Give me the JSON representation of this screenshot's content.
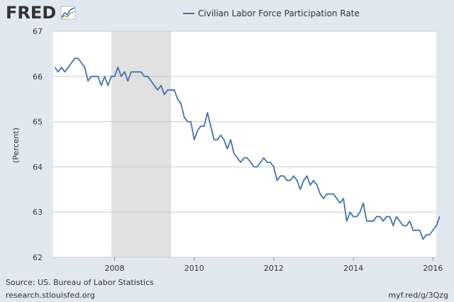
{
  "branding": {
    "logo_text": "FRED",
    "source": "Source: US. Bureau of Labor Statistics",
    "site": "research.stlouisfed.org",
    "short_url": "myf.red/g/3Qzg"
  },
  "colors": {
    "background": "#e1e9f0",
    "plot_background": "#ffffff",
    "series": "#4572a7",
    "recession": "#e1e1e1",
    "grid": "#cccccc"
  },
  "chart_data": {
    "type": "line",
    "title": "",
    "xlabel": "",
    "ylabel": "(Percent)",
    "xlim": [
      2006.458,
      2016.083
    ],
    "ylim": [
      62,
      67
    ],
    "grid": true,
    "legend": "top",
    "x_ticks": [
      2008,
      2010,
      2012,
      2014,
      2016
    ],
    "y_ticks": [
      62,
      63,
      64,
      65,
      66,
      67
    ],
    "recession": [
      2007.917,
      2009.417
    ],
    "series": [
      {
        "name": "Civilian Labor Force Participation Rate",
        "color": "#4572a7",
        "x_start": 2006.5,
        "x_step": 0.083333,
        "values": [
          66.2,
          66.1,
          66.2,
          66.1,
          66.2,
          66.3,
          66.4,
          66.4,
          66.3,
          66.2,
          65.9,
          66.0,
          66.0,
          66.0,
          65.8,
          66.0,
          65.8,
          66.0,
          66.0,
          66.2,
          66.0,
          66.1,
          65.9,
          66.1,
          66.1,
          66.1,
          66.1,
          66.0,
          66.0,
          65.9,
          65.8,
          65.7,
          65.8,
          65.6,
          65.7,
          65.7,
          65.7,
          65.5,
          65.4,
          65.1,
          65.0,
          65.0,
          64.6,
          64.8,
          64.9,
          64.9,
          65.2,
          64.9,
          64.6,
          64.6,
          64.7,
          64.6,
          64.4,
          64.6,
          64.3,
          64.2,
          64.1,
          64.2,
          64.2,
          64.1,
          64.0,
          64.0,
          64.1,
          64.2,
          64.1,
          64.1,
          64.0,
          63.7,
          63.8,
          63.8,
          63.7,
          63.7,
          63.8,
          63.7,
          63.5,
          63.7,
          63.8,
          63.6,
          63.7,
          63.6,
          63.4,
          63.3,
          63.4,
          63.4,
          63.4,
          63.3,
          63.2,
          63.3,
          62.8,
          63.0,
          62.9,
          62.9,
          63.0,
          63.2,
          62.8,
          62.8,
          62.8,
          62.9,
          62.9,
          62.8,
          62.9,
          62.9,
          62.7,
          62.9,
          62.8,
          62.7,
          62.7,
          62.8,
          62.6,
          62.6,
          62.6,
          62.4,
          62.5,
          62.5,
          62.6,
          62.7,
          62.9
        ]
      }
    ]
  }
}
